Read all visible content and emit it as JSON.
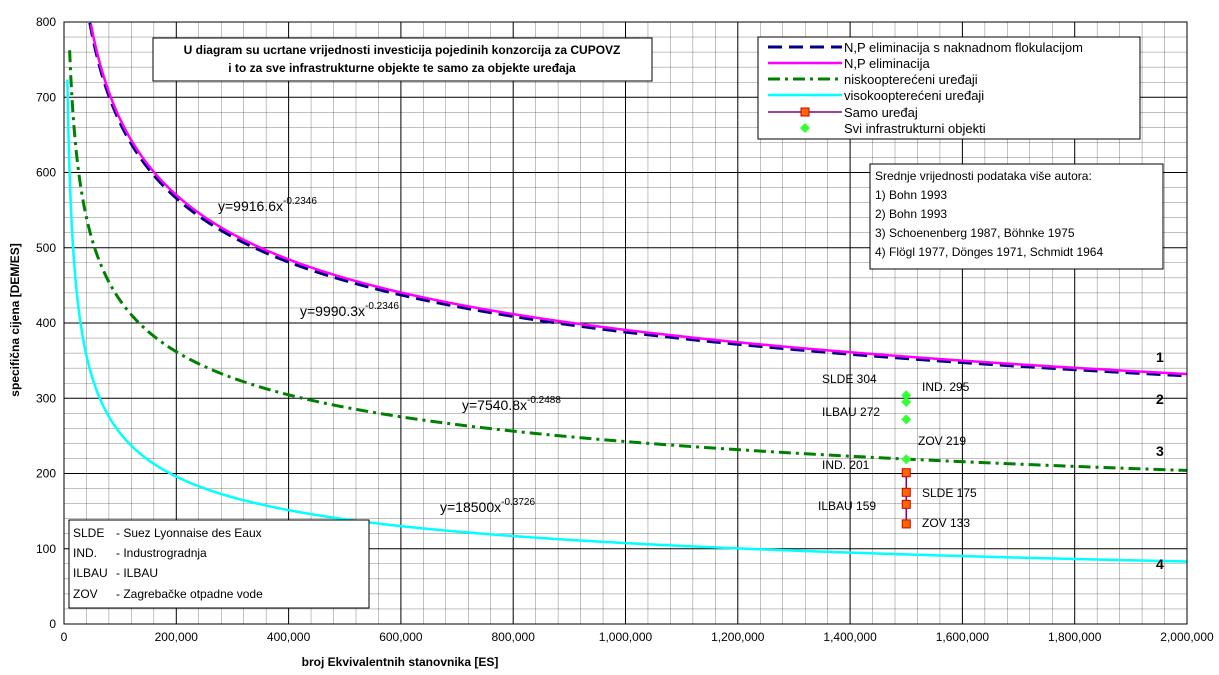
{
  "chart_data": {
    "type": "line",
    "title": "U diagram su ucrtane vrijednosti investicija pojedinih konzorcija za CUPOVZ i to za sve infrastrukturne objekte te samo za objekte uređaja",
    "title_lines": [
      "U diagram su ucrtane vrijednosti investicija pojedinih konzorcija za CUPOVZ",
      "i to za sve infrastrukturne objekte te samo za objekte uređaja"
    ],
    "xlabel": "broj Ekvivalentnih stanovnika [ES]",
    "ylabel": "specifična cijena [DEM/ES]",
    "xlim": [
      0,
      2000000
    ],
    "ylim": [
      0,
      800
    ],
    "x_ticks": [
      0,
      200000,
      400000,
      600000,
      800000,
      1000000,
      1200000,
      1400000,
      1600000,
      1800000,
      2000000
    ],
    "x_tick_labels": [
      "0",
      "200,000",
      "400,000",
      "600,000",
      "800,000",
      "1,000,000",
      "1,200,000",
      "1,400,000",
      "1,600,000",
      "1,800,000",
      "2,000,000"
    ],
    "y_ticks": [
      0,
      100,
      200,
      300,
      400,
      500,
      600,
      700,
      800
    ],
    "y_tick_labels": [
      "0",
      "100",
      "200",
      "300",
      "400",
      "500",
      "600",
      "700",
      "800"
    ],
    "grid": true,
    "legend_position": "top-right",
    "series": [
      {
        "name": "N,P eliminacija s naknadnom flokulacijom",
        "color": "#000080",
        "dash": "long-dash",
        "coef": 9916.6,
        "exp": -0.2346,
        "equation": "y=9916.6x",
        "equation_exp": "-0.2346",
        "curve_label": "1"
      },
      {
        "name": "N,P eliminacija",
        "color": "#ff00ff",
        "dash": "solid",
        "coef": 9990.3,
        "exp": -0.2346,
        "equation": "y=9990.3x",
        "equation_exp": "-0.2346",
        "curve_label": "2"
      },
      {
        "name": "niskoopterećeni uređaji",
        "color": "#008000",
        "dash": "dash-dot",
        "coef": 7540.8,
        "exp": -0.2488,
        "equation": "y=7540.8x",
        "equation_exp": "-0.2488",
        "curve_label": "3"
      },
      {
        "name": "visokoopterećeni uređaji",
        "color": "#00ffff",
        "dash": "solid",
        "coef": 18500,
        "exp": -0.3726,
        "equation": "y=18500x",
        "equation_exp": "-0.3726",
        "curve_label": "4"
      }
    ],
    "samo_uredaj": {
      "name": "Samo uređaj",
      "line_color": "#800080",
      "marker_color": "#ff6600",
      "marker_edge": "#cc0000",
      "points": [
        {
          "x": 1500000,
          "y": 201,
          "label": "IND. 201"
        },
        {
          "x": 1500000,
          "y": 175,
          "label": "SLDE 175"
        },
        {
          "x": 1500000,
          "y": 159,
          "label": "ILBAU 159"
        },
        {
          "x": 1500000,
          "y": 133,
          "label": "ZOV 133"
        }
      ]
    },
    "svi_objekti": {
      "name": "Svi infrastrukturni objekti",
      "marker_color": "#33ff33",
      "points": [
        {
          "x": 1500000,
          "y": 304,
          "label": "SLDE 304"
        },
        {
          "x": 1500000,
          "y": 295,
          "label": "IND. 295"
        },
        {
          "x": 1500000,
          "y": 272,
          "label": "ILBAU 272"
        },
        {
          "x": 1500000,
          "y": 219,
          "label": "ZOV 219"
        }
      ]
    },
    "references": {
      "title": "Srednje vrijednosti podataka više autora:",
      "items": [
        "1) Bohn 1993",
        "2) Bohn 1993",
        "3) Schoenenberg 1987, Böhnke 1975",
        "4) Flögl 1977, Dönges 1971, Schmidt 1964"
      ]
    },
    "abbreviations": [
      {
        "abbr": "SLDE",
        "text": "- Suez Lyonnaise des Eaux"
      },
      {
        "abbr": "IND.",
        "text": "- Industrogradnja"
      },
      {
        "abbr": "ILBAU",
        "text": "- ILBAU"
      },
      {
        "abbr": "ZOV",
        "text": "- Zagrebačke otpadne vode"
      }
    ]
  }
}
